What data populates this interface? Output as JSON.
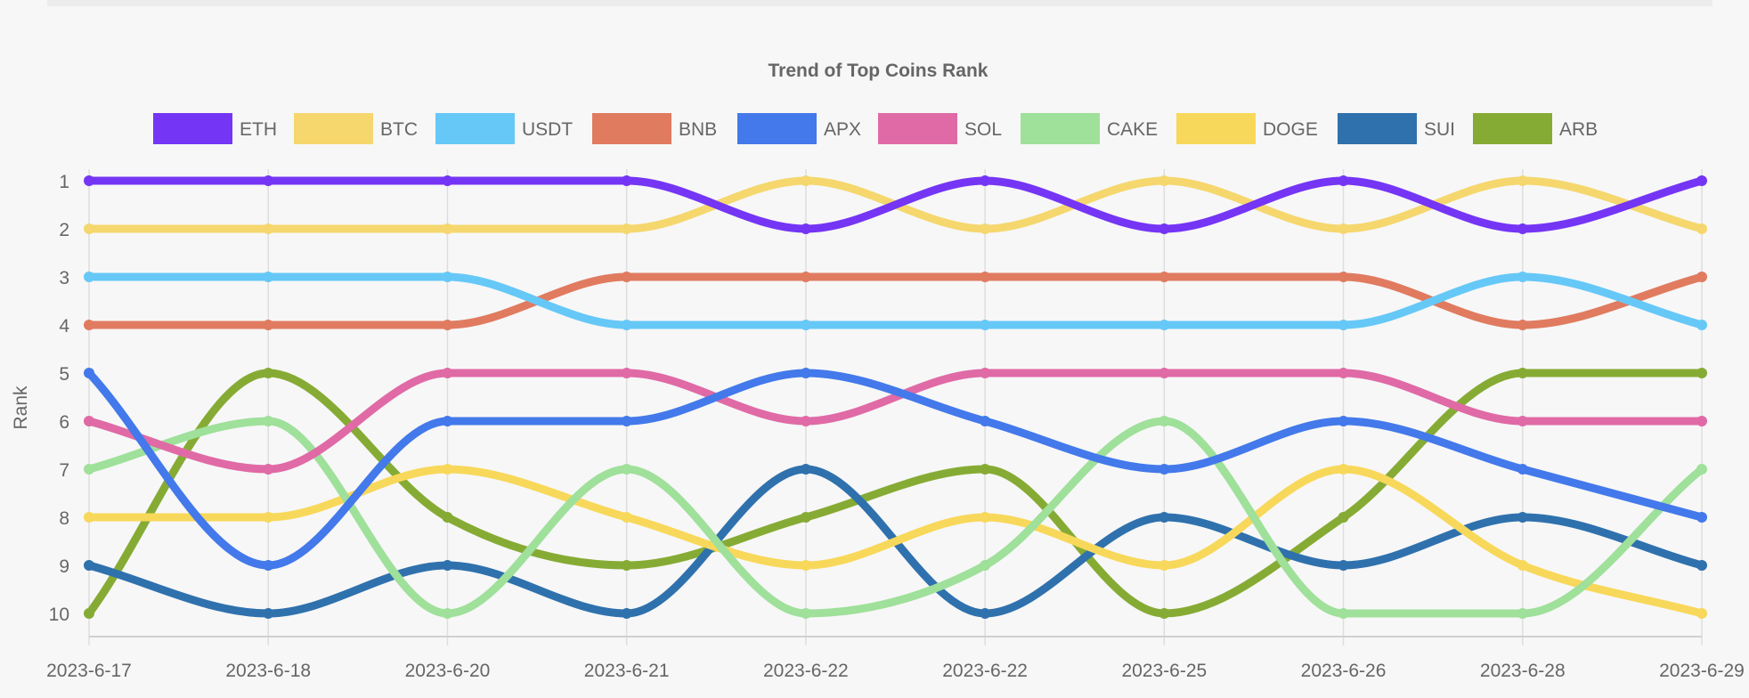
{
  "chart_data": {
    "type": "line",
    "title": "Trend of Top Coins Rank",
    "xlabel": "",
    "ylabel": "Rank",
    "y_reversed": true,
    "ylim": [
      1,
      10
    ],
    "yticks": [
      1,
      2,
      3,
      4,
      5,
      6,
      7,
      8,
      9,
      10
    ],
    "grid": "vertical",
    "legend": "top",
    "categories": [
      "2023-6-17",
      "2023-6-18",
      "2023-6-20",
      "2023-6-21",
      "2023-6-22",
      "2023-6-22",
      "2023-6-25",
      "2023-6-26",
      "2023-6-28",
      "2023-6-29"
    ],
    "series": [
      {
        "name": "ETH",
        "color": "#7535f5",
        "values": [
          1,
          1,
          1,
          1,
          2,
          1,
          2,
          1,
          2,
          1
        ]
      },
      {
        "name": "BTC",
        "color": "#f5d76e",
        "values": [
          2,
          2,
          2,
          2,
          1,
          2,
          1,
          2,
          1,
          2
        ]
      },
      {
        "name": "USDT",
        "color": "#66c8f7",
        "values": [
          3,
          3,
          3,
          4,
          4,
          4,
          4,
          4,
          3,
          4
        ]
      },
      {
        "name": "BNB",
        "color": "#e07b60",
        "values": [
          4,
          4,
          4,
          3,
          3,
          3,
          3,
          3,
          4,
          3
        ]
      },
      {
        "name": "APX",
        "color": "#4379ea",
        "values": [
          5,
          9,
          6,
          6,
          5,
          6,
          7,
          6,
          7,
          8
        ]
      },
      {
        "name": "SOL",
        "color": "#e06aa6",
        "values": [
          6,
          7,
          5,
          5,
          6,
          5,
          5,
          5,
          6,
          6
        ]
      },
      {
        "name": "CAKE",
        "color": "#9fe09a",
        "values": [
          7,
          6,
          10,
          7,
          10,
          9,
          6,
          10,
          10,
          7
        ]
      },
      {
        "name": "DOGE",
        "color": "#f8d85a",
        "values": [
          8,
          8,
          7,
          8,
          9,
          8,
          9,
          7,
          9,
          10
        ]
      },
      {
        "name": "SUI",
        "color": "#2f71ad",
        "values": [
          9,
          10,
          9,
          10,
          7,
          10,
          8,
          9,
          8,
          9
        ]
      },
      {
        "name": "ARB",
        "color": "#86ab34",
        "values": [
          10,
          5,
          8,
          9,
          8,
          7,
          10,
          8,
          5,
          5
        ]
      }
    ]
  }
}
